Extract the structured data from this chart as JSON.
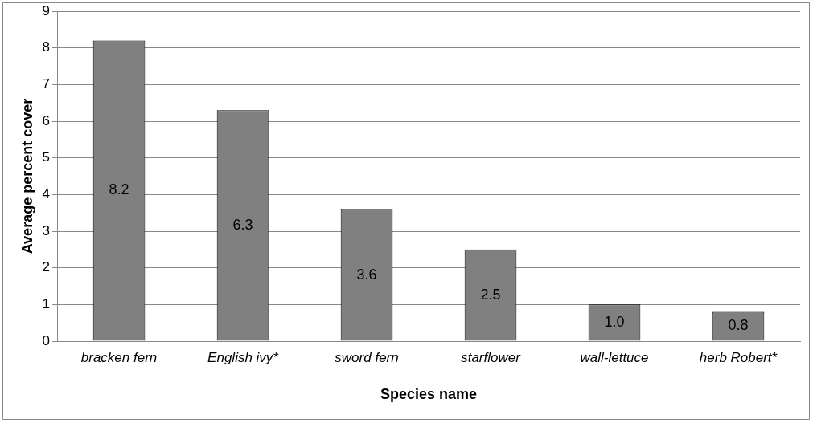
{
  "chart_data": {
    "type": "bar",
    "xlabel": "Species name",
    "ylabel": "Average percent cover",
    "categories": [
      "bracken fern",
      "English ivy*",
      "sword fern",
      "starflower",
      "wall-lettuce",
      "herb Robert*"
    ],
    "values": [
      8.2,
      6.3,
      3.6,
      2.5,
      1.0,
      0.8
    ],
    "value_labels": [
      "8.2",
      "6.3",
      "3.6",
      "2.5",
      "1.0",
      "0.8"
    ],
    "color": "#808080",
    "ylim": [
      0,
      9
    ],
    "yticks": [
      0,
      1,
      2,
      3,
      4,
      5,
      6,
      7,
      8,
      9
    ],
    "grid": "y",
    "legend": false
  }
}
